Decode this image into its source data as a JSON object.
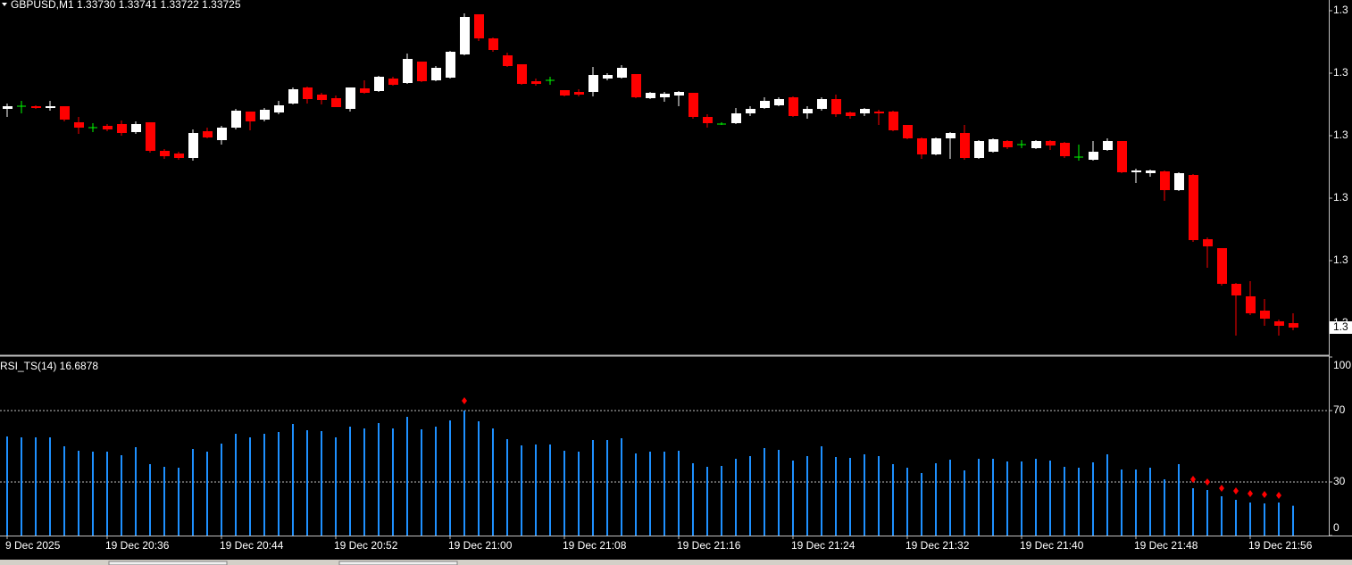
{
  "chart_data": [
    {
      "type": "candlestick",
      "title": "GBPUSD,M1  1.33730 1.33741 1.33722 1.33725",
      "open": [
        1.3397,
        1.33973,
        1.33973,
        1.33971,
        1.33973,
        1.33955,
        1.33949,
        1.33951,
        1.33953,
        1.33944,
        1.33955,
        1.33923,
        1.3392,
        1.33915,
        1.33945,
        1.33935,
        1.33949,
        1.33967,
        1.33958,
        1.33966,
        1.33976,
        1.33994,
        1.33986,
        1.33982,
        1.3397,
        1.33993,
        1.3399,
        1.34004,
        1.33999,
        1.34023,
        1.34002,
        1.34005,
        1.34031,
        1.34076,
        1.34049,
        1.3403,
        1.3402,
        1.34001,
        1.34002,
        1.33991,
        1.33989,
        1.33989,
        1.34004,
        1.34005,
        1.34009,
        1.33982,
        1.33983,
        1.33985,
        1.33988,
        1.33961,
        1.33953,
        1.33954,
        1.33965,
        1.33971,
        1.33974,
        1.33983,
        1.33965,
        1.3397,
        1.33981,
        1.33966,
        1.33965,
        1.33967,
        1.33967,
        1.33952,
        1.33937,
        1.33919,
        1.33937,
        1.33943,
        1.33915,
        1.33922,
        1.33934,
        1.3393,
        1.33926,
        1.33934,
        1.33932,
        1.33916,
        1.33913,
        1.33924,
        1.33934,
        1.33899,
        1.33898,
        1.339,
        1.33879,
        1.33896,
        1.33824,
        1.33814,
        1.33774,
        1.3376,
        1.33744,
        1.33732,
        1.3373
      ],
      "high": [
        1.33976,
        1.33979,
        1.33974,
        1.33979,
        1.33973,
        1.33961,
        1.33954,
        1.33953,
        1.33957,
        1.33956,
        1.33955,
        1.33925,
        1.33922,
        1.33947,
        1.33949,
        1.33951,
        1.3397,
        1.33967,
        1.33971,
        1.33979,
        1.33994,
        1.33995,
        1.33988,
        1.33985,
        1.33994,
        1.34002,
        1.34007,
        1.34006,
        1.34032,
        1.34023,
        1.34018,
        1.34035,
        1.34077,
        1.34076,
        1.3405,
        1.34033,
        1.3402,
        1.34004,
        1.34006,
        1.33991,
        1.33992,
        1.34017,
        1.3401,
        1.34019,
        1.34009,
        1.33989,
        1.33989,
        1.3399,
        1.33988,
        1.33964,
        1.33955,
        1.33971,
        1.33973,
        1.33983,
        1.33983,
        1.33984,
        1.33973,
        1.33983,
        1.33986,
        1.33967,
        1.33971,
        1.33969,
        1.33968,
        1.33952,
        1.33938,
        1.33938,
        1.33944,
        1.33952,
        1.33935,
        1.33937,
        1.33935,
        1.33935,
        1.33935,
        1.33935,
        1.33933,
        1.3393,
        1.33934,
        1.33937,
        1.33934,
        1.33903,
        1.33902,
        1.33901,
        1.33899,
        1.33897,
        1.33826,
        1.33814,
        1.33775,
        1.33777,
        1.33757,
        1.33734,
        1.33741
      ],
      "low": [
        1.33961,
        1.33965,
        1.3397,
        1.33968,
        1.33956,
        1.33942,
        1.33944,
        1.33945,
        1.3394,
        1.33942,
        1.33921,
        1.33914,
        1.33913,
        1.33912,
        1.33937,
        1.3393,
        1.33947,
        1.33946,
        1.33956,
        1.33964,
        1.33975,
        1.33976,
        1.33975,
        1.33972,
        1.33967,
        1.33987,
        1.33989,
        1.33996,
        1.33998,
        1.34,
        1.34001,
        1.34004,
        1.3403,
        1.34046,
        1.34034,
        1.34017,
        1.33997,
        1.33996,
        1.33997,
        1.33984,
        1.33984,
        1.33984,
        1.34002,
        1.34004,
        1.33982,
        1.33981,
        1.33978,
        1.33973,
        1.33959,
        1.33949,
        1.33952,
        1.33953,
        1.33962,
        1.3397,
        1.33973,
        1.33961,
        1.33959,
        1.33968,
        1.33961,
        1.33959,
        1.33962,
        1.33952,
        1.33945,
        1.33936,
        1.33914,
        1.33918,
        1.33914,
        1.33913,
        1.33914,
        1.33921,
        1.33925,
        1.33926,
        1.33925,
        1.33924,
        1.33915,
        1.33912,
        1.33912,
        1.33923,
        1.33898,
        1.33887,
        1.33894,
        1.33867,
        1.33878,
        1.33821,
        1.33792,
        1.33772,
        1.33716,
        1.33739,
        1.33727,
        1.33716,
        1.33722
      ],
      "close": [
        1.33973,
        1.33973,
        1.33971,
        1.33973,
        1.33958,
        1.33949,
        1.33949,
        1.33947,
        1.33943,
        1.33953,
        1.33923,
        1.33917,
        1.33915,
        1.33943,
        1.33938,
        1.33949,
        1.33968,
        1.33956,
        1.33969,
        1.33974,
        1.33992,
        1.33981,
        1.3398,
        1.33972,
        1.33994,
        1.33988,
        1.34006,
        1.33997,
        1.34026,
        1.34001,
        1.34016,
        1.34034,
        1.34073,
        1.34049,
        1.34036,
        1.34018,
        1.33998,
        1.33998,
        1.34002,
        1.33985,
        1.33986,
        1.34008,
        1.34008,
        1.34016,
        1.33983,
        1.33988,
        1.33987,
        1.33989,
        1.33961,
        1.33954,
        1.33953,
        1.33965,
        1.3397,
        1.33979,
        1.33981,
        1.33962,
        1.3397,
        1.33981,
        1.33964,
        1.33962,
        1.3397,
        1.33965,
        1.33946,
        1.33937,
        1.33919,
        1.33937,
        1.33943,
        1.33915,
        1.33934,
        1.33936,
        1.33927,
        1.3393,
        1.33934,
        1.33929,
        1.33917,
        1.33916,
        1.33922,
        1.33934,
        1.33899,
        1.33901,
        1.33901,
        1.33879,
        1.33898,
        1.33823,
        1.33816,
        1.33774,
        1.33761,
        1.33741,
        1.33735,
        1.33727,
        1.33725
      ],
      "up_color": "#ffffff",
      "down_color": "#ff0000",
      "doji_color": "#00ff00",
      "ylim": [
        1.33695,
        1.34092
      ],
      "yticks": [
        {
          "value": 1.3373,
          "label": "1.3"
        },
        {
          "value": 1.338,
          "label": "1.3"
        },
        {
          "value": 1.3387,
          "label": "1.3"
        },
        {
          "value": 1.3394,
          "label": "1.3"
        },
        {
          "value": 1.3401,
          "label": "1.3"
        },
        {
          "value": 1.3408,
          "label": "1.3"
        }
      ],
      "last_price": {
        "value": 1.33725,
        "label": "1.3"
      }
    },
    {
      "type": "bar",
      "title": "RSI_TS(14) 16.6878",
      "categories": [
        "9 Dec 2025",
        null,
        null,
        null,
        null,
        null,
        null,
        "19 Dec 20:36",
        null,
        null,
        null,
        null,
        null,
        null,
        null,
        "19 Dec 20:44",
        null,
        null,
        null,
        null,
        null,
        null,
        null,
        "19 Dec 20:52",
        null,
        null,
        null,
        null,
        null,
        null,
        null,
        "19 Dec 21:00",
        null,
        null,
        null,
        null,
        null,
        null,
        null,
        "19 Dec 21:08",
        null,
        null,
        null,
        null,
        null,
        null,
        null,
        "19 Dec 21:16",
        null,
        null,
        null,
        null,
        null,
        null,
        null,
        "19 Dec 21:24",
        null,
        null,
        null,
        null,
        null,
        null,
        null,
        "19 Dec 21:32",
        null,
        null,
        null,
        null,
        null,
        null,
        null,
        "19 Dec 21:40",
        null,
        null,
        null,
        null,
        null,
        null,
        null,
        "19 Dec 21:48",
        null,
        null,
        null,
        null,
        null,
        null,
        null,
        "19 Dec 21:56",
        null,
        null,
        null
      ],
      "values": [
        55.5,
        55,
        55,
        55,
        50,
        47.5,
        47,
        47,
        45,
        49.5,
        40,
        38.5,
        38,
        48.5,
        47,
        51.5,
        57,
        55,
        57,
        58,
        62.5,
        59,
        58.5,
        55,
        61,
        60,
        63,
        60,
        66.5,
        59.5,
        61,
        64.5,
        70,
        64,
        60,
        54,
        50.5,
        51,
        51,
        47.5,
        47,
        53.5,
        53.5,
        54.5,
        46,
        47,
        47,
        47.5,
        40.5,
        38.5,
        39,
        43,
        44.5,
        49,
        48,
        42,
        44.5,
        50,
        44,
        43.5,
        45.5,
        44.5,
        40,
        38,
        35,
        40.5,
        42.5,
        36.5,
        43,
        43,
        41.5,
        41.5,
        43,
        42,
        38.5,
        38,
        41,
        45.5,
        37,
        37,
        38,
        31.5,
        40,
        26.5,
        25.5,
        22,
        20,
        18.5,
        18,
        18.5,
        16.6878
      ],
      "color": "#1e90ff",
      "markers": [
        null,
        null,
        null,
        null,
        null,
        null,
        null,
        null,
        null,
        null,
        null,
        null,
        null,
        null,
        null,
        null,
        null,
        null,
        null,
        null,
        null,
        null,
        null,
        null,
        null,
        null,
        null,
        null,
        null,
        null,
        null,
        null,
        75.5,
        null,
        null,
        null,
        null,
        null,
        null,
        null,
        null,
        null,
        null,
        null,
        null,
        null,
        null,
        null,
        null,
        null,
        null,
        null,
        null,
        null,
        null,
        null,
        null,
        null,
        null,
        null,
        null,
        null,
        null,
        null,
        null,
        null,
        null,
        null,
        null,
        null,
        null,
        null,
        null,
        null,
        null,
        null,
        null,
        null,
        null,
        null,
        null,
        null,
        null,
        31.5,
        30,
        26.5,
        25,
        23.5,
        23,
        22.5,
        null
      ],
      "marker_color": "#ff0000",
      "ylim": [
        0,
        100
      ],
      "yticks": [
        0,
        30,
        70,
        100
      ]
    }
  ]
}
